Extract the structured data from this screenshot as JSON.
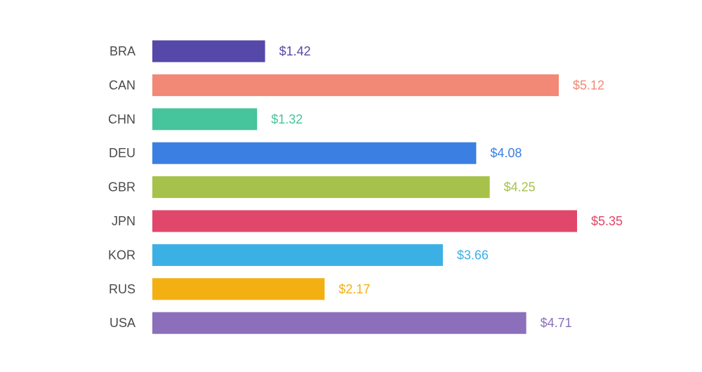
{
  "chart_data": {
    "type": "bar",
    "orientation": "horizontal",
    "title": "",
    "xlabel": "",
    "ylabel": "",
    "categories": [
      "BRA",
      "CAN",
      "CHN",
      "DEU",
      "GBR",
      "JPN",
      "KOR",
      "RUS",
      "USA"
    ],
    "values": [
      1.42,
      5.12,
      1.32,
      4.08,
      4.25,
      5.35,
      3.66,
      2.17,
      4.71
    ],
    "value_labels": [
      "$1.42",
      "$5.12",
      "$1.32",
      "$4.08",
      "$4.25",
      "$5.35",
      "$3.66",
      "$2.17",
      "$4.71"
    ],
    "colors": [
      "#5548a8",
      "#f28876",
      "#46c49b",
      "#3b7fe3",
      "#a6c24a",
      "#e0476a",
      "#3bb0e5",
      "#f2b013",
      "#8b6fbb"
    ],
    "xlim": [
      0,
      5.35
    ],
    "grid": false,
    "legend": "none"
  }
}
